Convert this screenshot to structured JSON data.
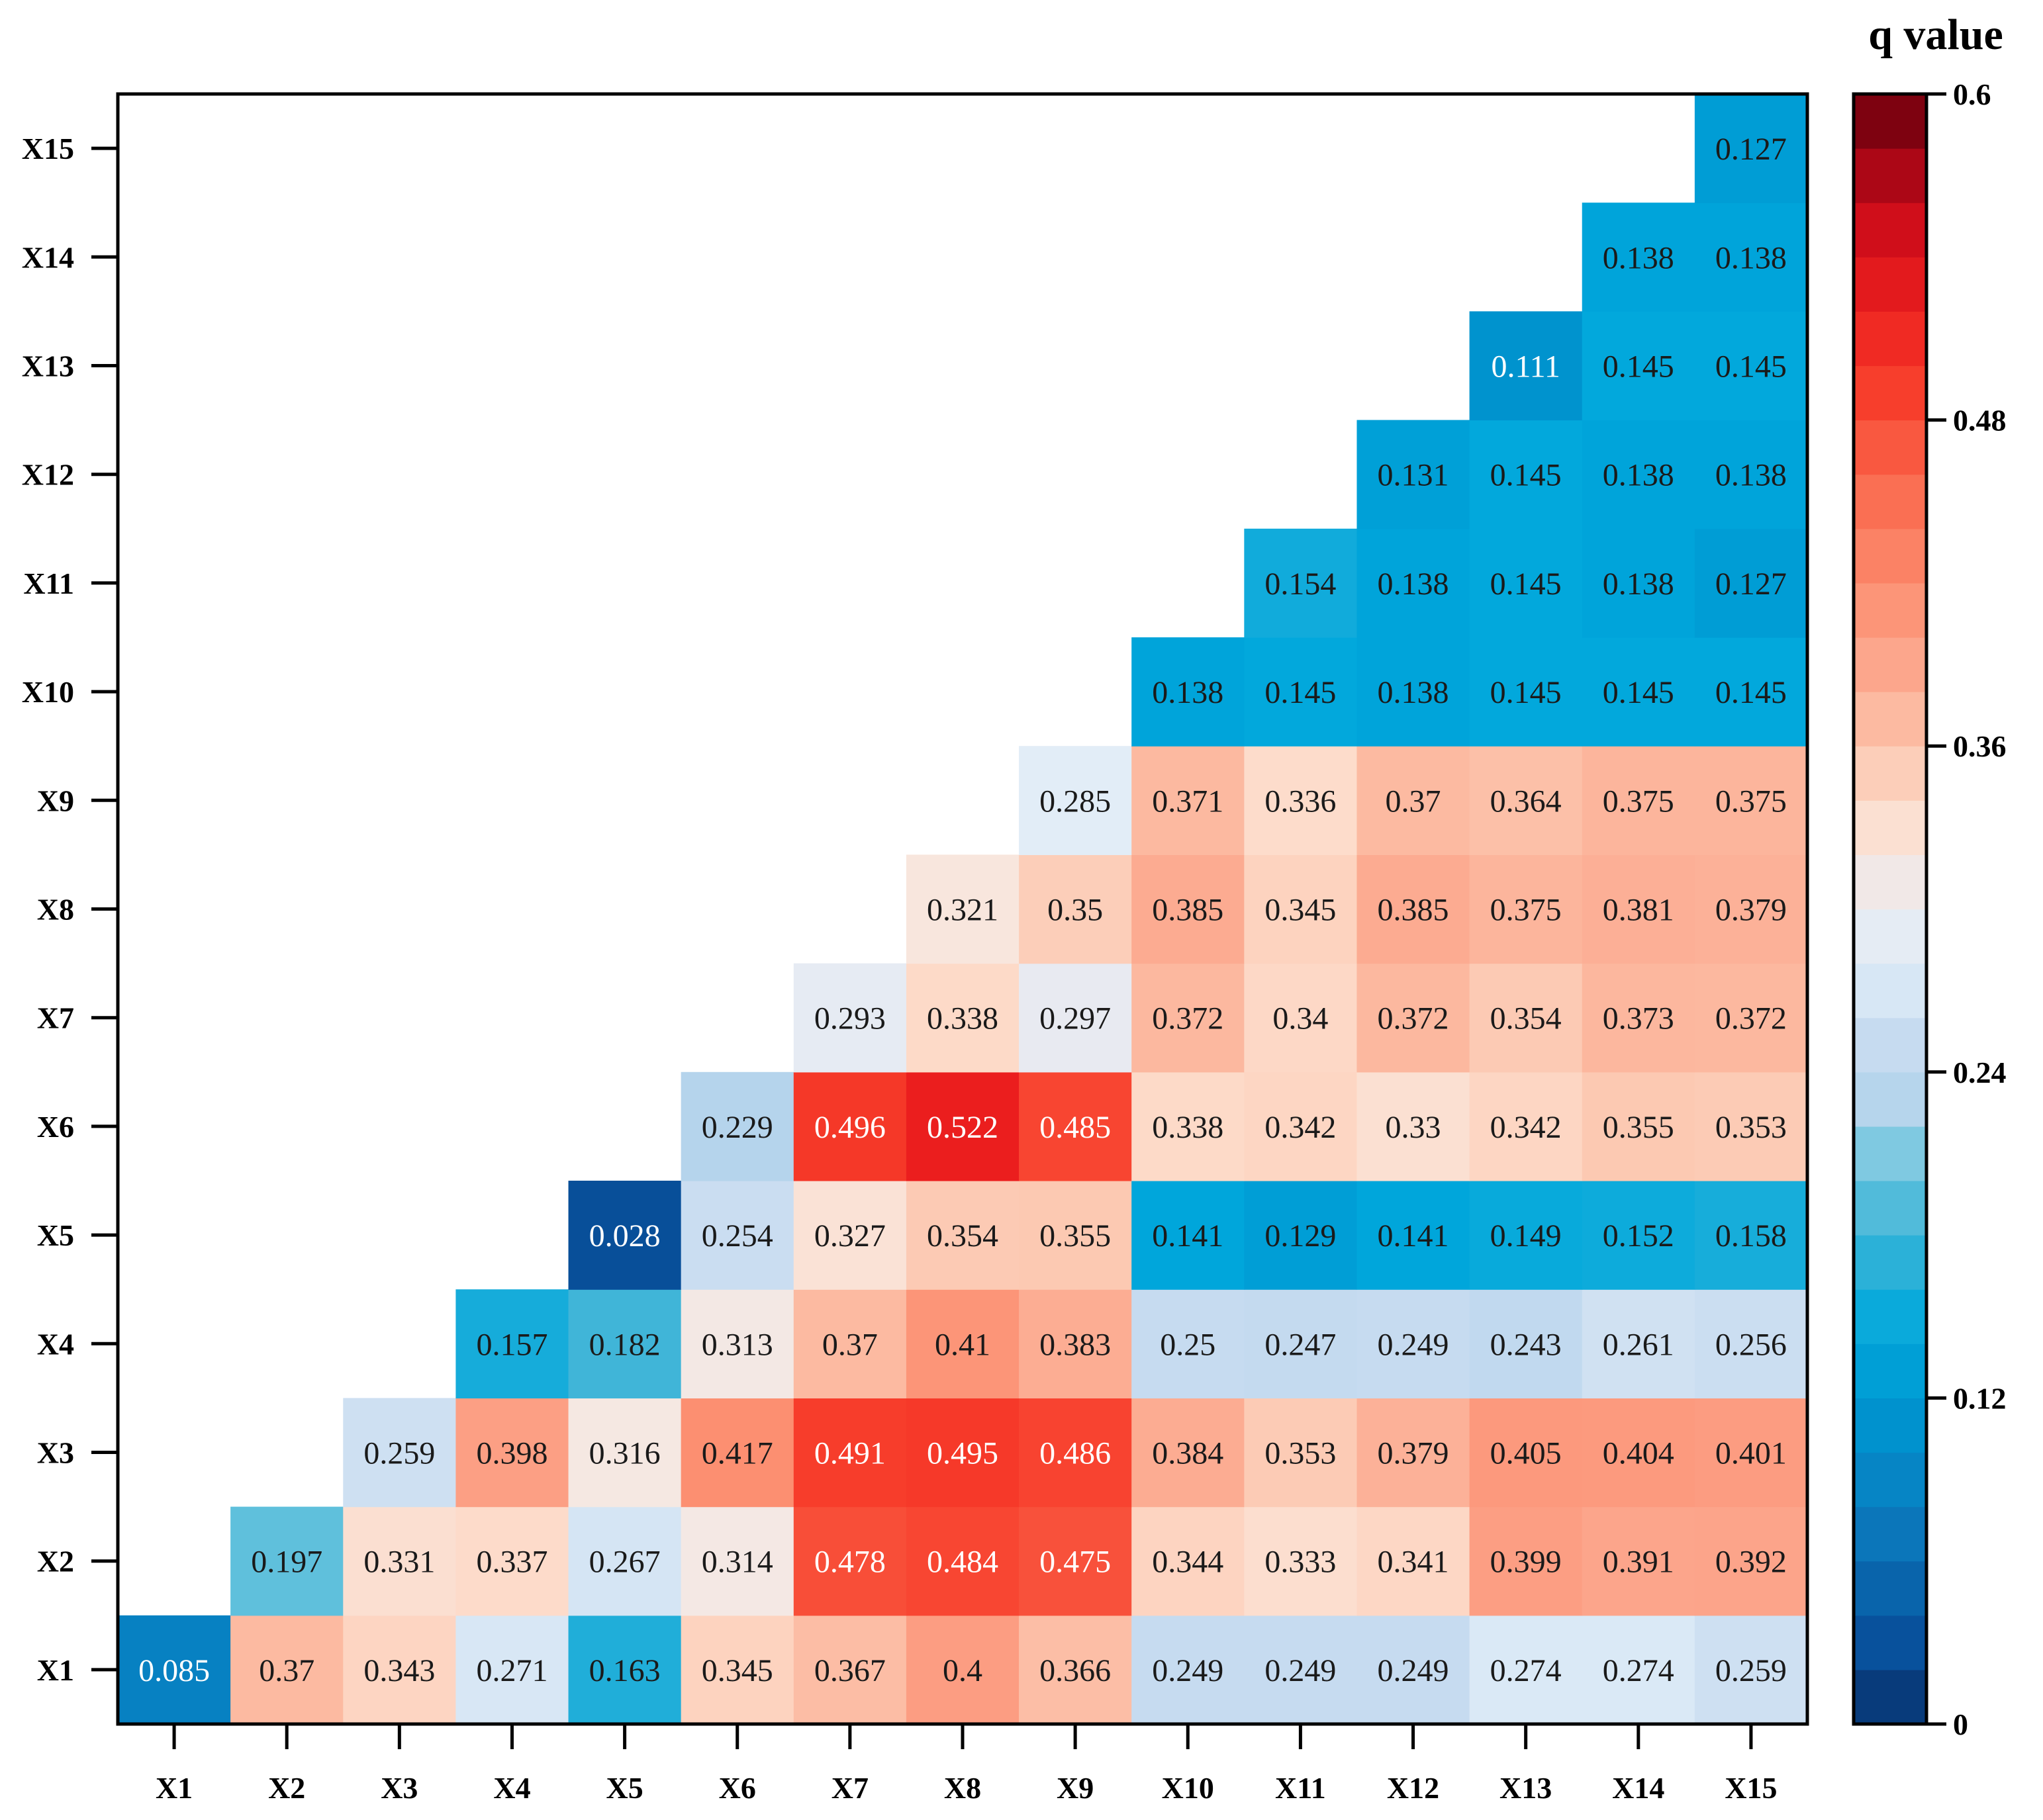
{
  "chart_data": {
    "type": "heatmap",
    "title": "",
    "xlabel": "",
    "ylabel": "",
    "x_categories": [
      "X1",
      "X2",
      "X3",
      "X4",
      "X5",
      "X6",
      "X7",
      "X8",
      "X9",
      "X10",
      "X11",
      "X12",
      "X13",
      "X14",
      "X15"
    ],
    "y_categories": [
      "X1",
      "X2",
      "X3",
      "X4",
      "X5",
      "X6",
      "X7",
      "X8",
      "X9",
      "X10",
      "X11",
      "X12",
      "X13",
      "X14",
      "X15"
    ],
    "matrix_shape": "upper-triangular (row Xi has values for columns Xi..X15)",
    "rows": [
      {
        "y": "X1",
        "values": [
          0.085,
          0.37,
          0.343,
          0.271,
          0.163,
          0.345,
          0.367,
          0.4,
          0.366,
          0.249,
          0.249,
          0.249,
          0.274,
          0.274,
          0.259
        ]
      },
      {
        "y": "X2",
        "values": [
          0.197,
          0.331,
          0.337,
          0.267,
          0.314,
          0.478,
          0.484,
          0.475,
          0.344,
          0.333,
          0.341,
          0.399,
          0.391,
          0.392
        ]
      },
      {
        "y": "X3",
        "values": [
          0.259,
          0.398,
          0.316,
          0.417,
          0.491,
          0.495,
          0.486,
          0.384,
          0.353,
          0.379,
          0.405,
          0.404,
          0.401
        ]
      },
      {
        "y": "X4",
        "values": [
          0.157,
          0.182,
          0.313,
          0.37,
          0.41,
          0.383,
          0.25,
          0.247,
          0.249,
          0.243,
          0.261,
          0.256
        ]
      },
      {
        "y": "X5",
        "values": [
          0.028,
          0.254,
          0.327,
          0.354,
          0.355,
          0.141,
          0.129,
          0.141,
          0.149,
          0.152,
          0.158
        ]
      },
      {
        "y": "X6",
        "values": [
          0.229,
          0.496,
          0.522,
          0.485,
          0.338,
          0.342,
          0.33,
          0.342,
          0.355,
          0.353
        ]
      },
      {
        "y": "X7",
        "values": [
          0.293,
          0.338,
          0.297,
          0.372,
          0.34,
          0.372,
          0.354,
          0.373,
          0.372
        ]
      },
      {
        "y": "X8",
        "values": [
          0.321,
          0.35,
          0.385,
          0.345,
          0.385,
          0.375,
          0.381,
          0.379
        ]
      },
      {
        "y": "X9",
        "values": [
          0.285,
          0.371,
          0.336,
          0.37,
          0.364,
          0.375,
          0.375
        ]
      },
      {
        "y": "X10",
        "values": [
          0.138,
          0.145,
          0.138,
          0.145,
          0.145,
          0.145
        ]
      },
      {
        "y": "X11",
        "values": [
          0.154,
          0.138,
          0.145,
          0.138,
          0.127
        ]
      },
      {
        "y": "X12",
        "values": [
          0.131,
          0.145,
          0.138,
          0.138
        ]
      },
      {
        "y": "X13",
        "values": [
          0.111,
          0.145,
          0.145
        ]
      },
      {
        "y": "X14",
        "values": [
          0.138,
          0.138
        ]
      },
      {
        "y": "X15",
        "values": [
          0.127
        ]
      }
    ],
    "colorbar": {
      "title": "q value",
      "range": [
        0,
        0.6
      ],
      "ticks": [
        "0",
        "0.12",
        "0.24",
        "0.36",
        "0.48",
        "0.6"
      ],
      "colors": [
        "#08306b",
        "#08519c",
        "#2171b5",
        "#0a7fc0",
        "#00a8dc",
        "#6dc5de",
        "#c6dbef",
        "#eaeaf0",
        "#fde9d7",
        "#fcbba1",
        "#fc9272",
        "#fb6a4a",
        "#ef3b2c",
        "#cb181d",
        "#67000d"
      ]
    }
  }
}
